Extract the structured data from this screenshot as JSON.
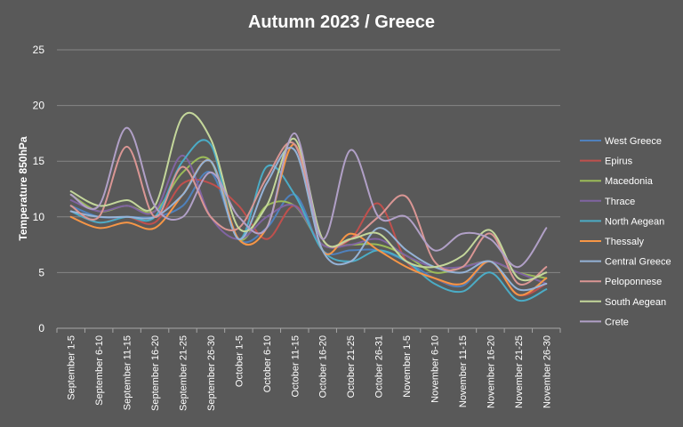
{
  "chart_data": {
    "type": "line",
    "title": "Autumn 2023  / Greece",
    "xlabel": "",
    "ylabel": "Temperature 850hPa",
    "ylim": [
      0,
      25
    ],
    "yticks": [
      0,
      5,
      10,
      15,
      20,
      25
    ],
    "grid": "horizontal",
    "legend_position": "right",
    "categories": [
      "September 1-5",
      "September 6-10",
      "September 11-15",
      "September 16-20",
      "September 21-25",
      "September 26-30",
      "October 1-5",
      "October 6-10",
      "October 11-15",
      "October 16-20",
      "October 21-25",
      "October 26-31",
      "November 1-5",
      "November 6-10",
      "November 11-15",
      "November 16-20",
      "November 21-25",
      "November 26-30"
    ],
    "series": [
      {
        "name": "West Greece",
        "color": "#4f81bd",
        "values": [
          11,
          10,
          10,
          10,
          11,
          14,
          8,
          9,
          12,
          7,
          7,
          7,
          6,
          4.5,
          3.8,
          6,
          3,
          4.5
        ]
      },
      {
        "name": "Epirus",
        "color": "#c0504d",
        "values": [
          10.5,
          9.5,
          10,
          9.5,
          13,
          13,
          11,
          8,
          11,
          7.5,
          8,
          11.2,
          6,
          4.5,
          4,
          6,
          3,
          4
        ]
      },
      {
        "name": "Macedonia",
        "color": "#9bbb59",
        "values": [
          12,
          10.5,
          11,
          10.5,
          14,
          15,
          8,
          11,
          11,
          7.5,
          7.5,
          7.5,
          6.5,
          5,
          5.5,
          6,
          5,
          4.5
        ]
      },
      {
        "name": "Thrace",
        "color": "#8064a2",
        "values": [
          11.5,
          10.5,
          11,
          10.5,
          15.5,
          10,
          8,
          10,
          11,
          7.5,
          7.5,
          8,
          6.5,
          5.5,
          5.5,
          6,
          5,
          4
        ]
      },
      {
        "name": "North Aegean",
        "color": "#4bacc6",
        "values": [
          10.5,
          9.5,
          10,
          10,
          15,
          16.5,
          8,
          14.5,
          12,
          7,
          6,
          7,
          6,
          4,
          3.3,
          5,
          2.5,
          3.5
        ]
      },
      {
        "name": "Thessaly",
        "color": "#f79646",
        "values": [
          10,
          9,
          9.5,
          9,
          12,
          15,
          8,
          9,
          16.5,
          7,
          8.5,
          7,
          5.5,
          4.5,
          4,
          6,
          3,
          4.5
        ]
      },
      {
        "name": "Central Greece",
        "color": "#95b3d7",
        "values": [
          10.5,
          10,
          10,
          10,
          12,
          15,
          8,
          13,
          16,
          7,
          6,
          9,
          7,
          5.5,
          5,
          6,
          3.5,
          4
        ]
      },
      {
        "name": "Peloponnese",
        "color": "#da9694",
        "values": [
          11,
          10,
          16.3,
          10,
          14.5,
          10,
          9,
          13.5,
          16.5,
          8,
          8,
          10,
          11.8,
          6,
          5.5,
          8.5,
          4,
          5.5
        ]
      },
      {
        "name": "South Aegean",
        "color": "#c4d79b",
        "values": [
          12.3,
          11,
          11.5,
          11,
          19,
          17,
          9,
          11,
          17,
          8,
          8,
          8.5,
          6,
          5.5,
          6.5,
          8.8,
          4.5,
          5
        ]
      },
      {
        "name": "Crete",
        "color": "#b1a0c7",
        "values": [
          12,
          11,
          18,
          11,
          10,
          14,
          10,
          9,
          17.5,
          8,
          16,
          10,
          10,
          7,
          8.5,
          8,
          5.5,
          9
        ]
      }
    ]
  }
}
